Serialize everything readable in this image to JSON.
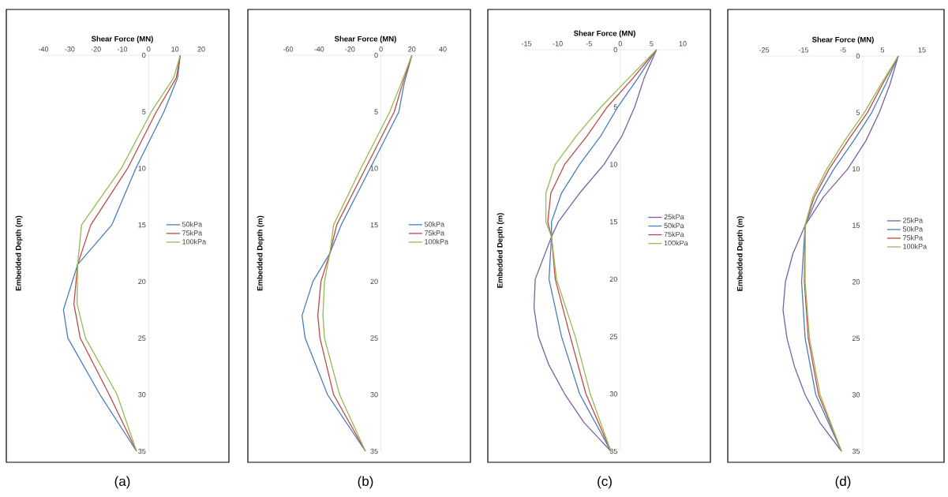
{
  "chart_data": [
    {
      "type": "line",
      "xlabel": "Shear Force (MN)",
      "ylabel": "Embedded Depth (m)",
      "annotations": [
        "(a)"
      ],
      "xlim": [
        -40,
        20
      ],
      "xticks": [
        -40,
        -30,
        -20,
        -10,
        0,
        10,
        20
      ],
      "ylim": [
        35,
        0
      ],
      "yticks": [
        0,
        5,
        10,
        15,
        20,
        25,
        30,
        35
      ],
      "legend": "right",
      "series": [
        {
          "name": "50kPa",
          "color": "#4a7ebb",
          "x": [
            12,
            11,
            5.8,
            -4.9,
            -14,
            -27,
            -32.4,
            -30.7,
            -18.5,
            -4.6
          ],
          "values": [
            0,
            2,
            5,
            10,
            15,
            18.5,
            22.5,
            25,
            30,
            35
          ]
        },
        {
          "name": "75kPa",
          "color": "#be4b48",
          "x": [
            12,
            10.5,
            2.9,
            -8,
            -22,
            -27,
            -28.4,
            -26,
            -15,
            -4.6
          ],
          "values": [
            0,
            2,
            5,
            10,
            15,
            18.5,
            22,
            25,
            30,
            35
          ]
        },
        {
          "name": "100kPa",
          "color": "#98b954",
          "x": [
            12,
            9.5,
            1,
            -10.4,
            -25.5,
            -27,
            -27.2,
            -24,
            -12,
            -4.6
          ],
          "values": [
            0,
            2,
            5,
            10,
            15,
            18.5,
            22,
            25,
            30,
            35
          ]
        }
      ]
    },
    {
      "type": "line",
      "xlabel": "Shear Force (MN)",
      "ylabel": "Embedded Depth (m)",
      "annotations": [
        "(b)"
      ],
      "xlim": [
        -60,
        40
      ],
      "xticks": [
        -60,
        -40,
        -20,
        0,
        20,
        40
      ],
      "ylim": [
        35,
        0
      ],
      "yticks": [
        0,
        5,
        10,
        15,
        20,
        25,
        30,
        35
      ],
      "legend": "right",
      "series": [
        {
          "name": "50kPa",
          "color": "#4a7ebb",
          "x": [
            20,
            15,
            11.6,
            -7,
            -25.7,
            -33,
            -44,
            -51,
            -49,
            -34.5,
            -10
          ],
          "values": [
            0,
            2.5,
            5,
            10,
            15,
            17.5,
            20,
            23,
            25,
            30,
            35
          ]
        },
        {
          "name": "75kPa",
          "color": "#be4b48",
          "x": [
            20,
            14,
            8.6,
            -10,
            -28.6,
            -33,
            -38.8,
            -40.8,
            -39.4,
            -30.6,
            -10
          ],
          "values": [
            0,
            2.5,
            5,
            10,
            15,
            17.5,
            20,
            23,
            25,
            30,
            35
          ]
        },
        {
          "name": "100kPa",
          "color": "#98b954",
          "x": [
            20,
            13,
            5.7,
            -13,
            -30.6,
            -33,
            -36.5,
            -37.5,
            -36.5,
            -26.7,
            -10
          ],
          "values": [
            0,
            2.5,
            5,
            10,
            15,
            17.5,
            20,
            23,
            25,
            30,
            35
          ]
        }
      ]
    },
    {
      "type": "line",
      "xlabel": "Shear Force (MN)",
      "ylabel": "Embedded Depth (m)",
      "annotations": [
        "(c)"
      ],
      "xlim": [
        -15,
        10
      ],
      "xticks": [
        -15,
        -10,
        -5,
        0,
        5,
        10
      ],
      "ylim": [
        35,
        0
      ],
      "yticks": [
        0,
        5,
        10,
        15,
        20,
        25,
        30,
        35
      ],
      "legend": "right",
      "series": [
        {
          "name": "25kPa",
          "color": "#7d60a0",
          "x": [
            5.8,
            3.8,
            2.3,
            0.3,
            -2.6,
            -6.5,
            -9.9,
            -11,
            -13.6,
            -13.8,
            -13.1,
            -11.4,
            -8.9,
            -5.8,
            -1.5
          ],
          "values": [
            0,
            2.5,
            5,
            7.5,
            10,
            12.5,
            15,
            16.3,
            20,
            22.5,
            25,
            27.5,
            30,
            32.5,
            35
          ]
        },
        {
          "name": "50kPa",
          "color": "#4a7ebb",
          "x": [
            5.8,
            2.8,
            -0.4,
            -3.1,
            -6.5,
            -9.4,
            -11,
            -11,
            -11.4,
            -9.4,
            -6.5,
            -1.5
          ],
          "values": [
            0,
            2.5,
            5,
            7.5,
            10,
            12.5,
            15,
            16.3,
            20,
            25,
            30,
            35
          ]
        },
        {
          "name": "75kPa",
          "color": "#be4b48",
          "x": [
            5.8,
            2,
            -2.1,
            -5.3,
            -8.9,
            -11.1,
            -11.6,
            -11,
            -10.4,
            -8,
            -5.5,
            -1.5
          ],
          "values": [
            0,
            2.5,
            5,
            7.5,
            10,
            12.5,
            15,
            16.3,
            20,
            25,
            30,
            35
          ]
        },
        {
          "name": "100kPa",
          "color": "#98b954",
          "x": [
            5.8,
            1.3,
            -3.1,
            -7,
            -10.4,
            -11.9,
            -11.9,
            -11,
            -10.2,
            -7.2,
            -4.8,
            -1.5
          ],
          "values": [
            0,
            2.5,
            5,
            7.5,
            10,
            12.5,
            15,
            16.3,
            20,
            25,
            30,
            35
          ]
        }
      ]
    },
    {
      "type": "line",
      "xlabel": "Shear Force (MN)",
      "ylabel": "Embedded Depth (m)",
      "annotations": [
        "(d)"
      ],
      "xlim": [
        -25,
        15
      ],
      "xticks": [
        -25,
        -15,
        -5,
        5,
        15
      ],
      "ylim": [
        35,
        0
      ],
      "yticks": [
        0,
        5,
        10,
        15,
        20,
        25,
        30,
        35
      ],
      "legend": "right",
      "series": [
        {
          "name": "25kPa",
          "color": "#7d60a0",
          "x": [
            9,
            6.9,
            4.2,
            0.8,
            -3.8,
            -10,
            -14.6,
            -17.7,
            -19.6,
            -20.2,
            -19.2,
            -17.3,
            -14.6,
            -10.8,
            -5.4
          ],
          "values": [
            0,
            2.5,
            5,
            7.5,
            10,
            12.5,
            15,
            17.5,
            20,
            22.5,
            25,
            27.5,
            30,
            32.5,
            35
          ]
        },
        {
          "name": "50kPa",
          "color": "#4a7ebb",
          "x": [
            9,
            5.8,
            2.3,
            -2.3,
            -7.3,
            -11.5,
            -14.6,
            -15.5,
            -14.6,
            -11.9,
            -5.4
          ],
          "values": [
            0,
            2.5,
            5,
            7.5,
            10,
            12.5,
            15,
            20,
            25,
            30,
            35
          ]
        },
        {
          "name": "75kPa",
          "color": "#be4b48",
          "x": [
            9,
            5,
            1.2,
            -3.8,
            -8.5,
            -12.3,
            -14.6,
            -14.8,
            -13.8,
            -11.2,
            -5.4
          ],
          "values": [
            0,
            2.5,
            5,
            7.5,
            10,
            12.5,
            15,
            20,
            25,
            30,
            35
          ]
        },
        {
          "name": "100kPa",
          "color": "#98b954",
          "x": [
            9,
            4.6,
            0.4,
            -4.6,
            -9.1,
            -12.7,
            -14.6,
            -14.6,
            -13.5,
            -10.8,
            -5.4
          ],
          "values": [
            0,
            2.5,
            5,
            7.5,
            10,
            12.5,
            15,
            20,
            25,
            30,
            35
          ]
        }
      ]
    }
  ]
}
